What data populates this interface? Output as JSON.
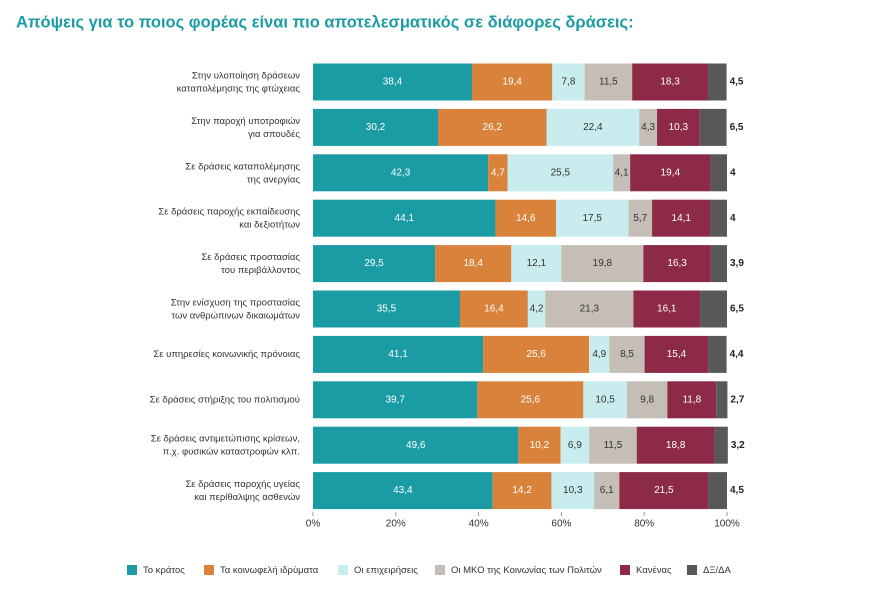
{
  "chart_data": {
    "type": "stacked-barh",
    "title": "Απόψεις για το ποιος φορέας είναι πιο αποτελεσματικός σε διάφορες δράσεις:",
    "categories": [
      "Στην υλοποίηση δράσεων\nκαταπολέμησης της φτώχειας",
      "Στην παροχή υποτροφιών\nγια σπουδές",
      "Σε δράσεις καταπολέμησης\nτης ανεργίας",
      "Σε δράσεις παροχής εκπαίδευσης\nκαι δεξιοτήτων",
      "Σε δράσεις προστασίας\nτου περιβάλλοντος",
      "Στην ενίσχυση της προστασίας\nτων ανθρώπινων δικαιωμάτων",
      "Σε υπηρεσίες κοινωνικής πρόνοιας",
      "Σε δράσεις στήριξης του πολιτισμού",
      "Σε δράσεις αντιμετώπισης κρίσεων,\nπ.χ. φυσικών καταστροφών κλπ.",
      "Σε δράσεις παροχής υγείας\nκαι περίθαλψης ασθενών"
    ],
    "series": [
      {
        "name": "Το κράτος",
        "color": "#1b9ca5",
        "values": [
          38.4,
          30.2,
          42.3,
          44.1,
          29.5,
          35.5,
          41.1,
          39.7,
          49.6,
          43.4
        ],
        "value_labels": [
          "38,4",
          "30,2",
          "42,3",
          "44,1",
          "29,5",
          "35,5",
          "41,1",
          "39,7",
          "49,6",
          "43,4"
        ]
      },
      {
        "name": "Τα κοινωφελή ιδρύματα",
        "color": "#d9823b",
        "values": [
          19.4,
          26.2,
          4.7,
          14.6,
          18.4,
          16.4,
          25.6,
          25.6,
          10.2,
          14.2
        ],
        "value_labels": [
          "19,4",
          "26,2",
          "4,7",
          "14,6",
          "18,4",
          "16,4",
          "25,6",
          "25,6",
          "10,2",
          "14,2"
        ]
      },
      {
        "name": "Οι επιχειρήσεις",
        "color": "#c9ecee",
        "values": [
          7.8,
          22.4,
          25.5,
          17.5,
          12.1,
          4.2,
          4.9,
          10.5,
          6.9,
          10.3
        ],
        "value_labels": [
          "7,8",
          "22,4",
          "25,5",
          "17,5",
          "12,1",
          "4,2",
          "4,9",
          "10,5",
          "6,9",
          "10,3"
        ]
      },
      {
        "name": "Οι ΜΚΟ της Κοινωνίας των Πολιτών",
        "color": "#c5beb7",
        "values": [
          11.5,
          4.3,
          4.1,
          5.7,
          19.8,
          21.3,
          8.5,
          9.8,
          11.5,
          6.1
        ],
        "value_labels": [
          "11,5",
          "4,3",
          "4,1",
          "5,7",
          "19,8",
          "21,3",
          "8,5",
          "9,8",
          "11,5",
          "6,1"
        ]
      },
      {
        "name": "Κανένας",
        "color": "#8c2a47",
        "values": [
          18.3,
          10.3,
          19.4,
          14.1,
          16.3,
          16.1,
          15.4,
          11.8,
          18.8,
          21.5
        ],
        "value_labels": [
          "18,3",
          "10,3",
          "19,4",
          "14,1",
          "16,3",
          "16,1",
          "15,4",
          "11,8",
          "18,8",
          "21,5"
        ]
      },
      {
        "name": "ΔΞ/ΔΑ",
        "color": "#58585a",
        "values": [
          4.5,
          6.5,
          4,
          4,
          3.9,
          6.5,
          4.4,
          2.7,
          3.2,
          4.5
        ],
        "value_labels": [
          "4,5",
          "6,5",
          "4",
          "4",
          "3,9",
          "6,5",
          "4,4",
          "2,7",
          "3,2",
          "4,5"
        ]
      }
    ],
    "xlim": [
      0,
      100
    ],
    "xticks": [
      {
        "value": 0,
        "label": "0%"
      },
      {
        "value": 20,
        "label": "20%"
      },
      {
        "value": 40,
        "label": "40%"
      },
      {
        "value": 60,
        "label": "60%"
      },
      {
        "value": 80,
        "label": "80%"
      },
      {
        "value": 100,
        "label": "100%"
      }
    ]
  }
}
